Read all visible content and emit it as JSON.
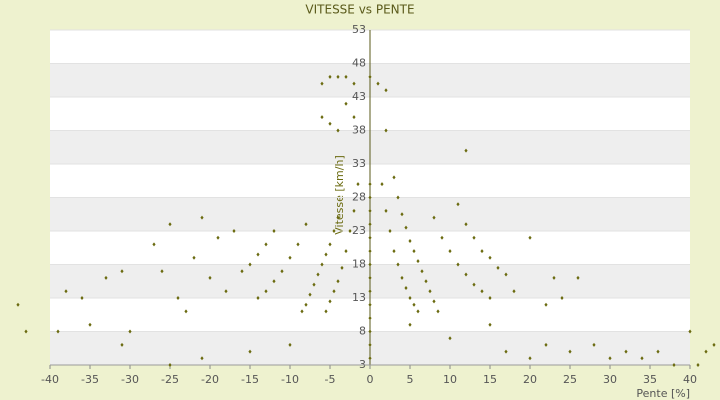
{
  "chart_data": {
    "type": "scatter",
    "title": "VITESSE vs PENTE",
    "x_label": "Pente [%]",
    "y_label": "Vitesse [km/h]",
    "xlim": [
      -40,
      40
    ],
    "xticks": [
      -40,
      -35,
      -30,
      -25,
      -20,
      -15,
      -10,
      -5,
      0,
      5,
      10,
      15,
      20,
      25,
      30,
      35,
      40
    ],
    "ylim": [
      3,
      53
    ],
    "yticks": [
      3,
      8,
      13,
      18,
      23,
      28,
      33,
      38,
      43,
      48,
      53
    ],
    "grid": true,
    "color": "#6b6b10",
    "x": [
      1.5,
      2,
      2.5,
      3,
      3.5,
      4,
      4.5,
      5,
      5.5,
      6,
      3,
      3.5,
      4,
      4.5,
      5,
      5.5,
      6,
      6.5,
      7,
      7.5,
      8,
      8.5,
      8,
      9,
      10,
      11,
      12,
      13,
      14,
      15,
      11,
      12,
      13,
      14,
      15,
      16,
      17,
      -1.5,
      -2,
      -2.5,
      -3,
      -3.5,
      -4,
      -4.5,
      -5,
      -5.5,
      -4,
      -4.5,
      -5,
      -5.5,
      -6,
      -6.5,
      -7,
      -7.5,
      -8,
      -8.5,
      -8,
      -9,
      -10,
      -11,
      -12,
      -13,
      -14,
      -12,
      -13,
      -14,
      -15,
      -16,
      -6,
      -5,
      -4,
      -3,
      -2,
      0,
      1,
      2,
      -6,
      -5,
      -4,
      -2,
      2,
      -3,
      0,
      0,
      0,
      0,
      0,
      0,
      0,
      0,
      0,
      0,
      0,
      0,
      0,
      0,
      -44,
      -43,
      -39,
      -38,
      -36,
      -35,
      -33,
      -31,
      -31,
      -30,
      -27,
      -26,
      -25,
      -25,
      -24,
      -23,
      -22,
      -21,
      -21,
      -20,
      -19,
      -18,
      -17,
      12,
      18,
      20,
      22,
      23,
      24,
      25,
      26,
      28,
      30,
      32,
      34,
      36,
      38,
      40,
      41,
      42,
      43,
      -10,
      -15,
      5,
      10,
      15,
      17,
      20,
      22
    ],
    "y": [
      30,
      26,
      23,
      20,
      18,
      16,
      14.5,
      13,
      12,
      11,
      31,
      28,
      25.5,
      23.5,
      21.5,
      20,
      18.5,
      17,
      15.5,
      14,
      12.5,
      11,
      25,
      22,
      20,
      18,
      16.5,
      15,
      14,
      13,
      27,
      24,
      22,
      20,
      19,
      17.5,
      16.5,
      30,
      26,
      23,
      20,
      17.5,
      15.5,
      14,
      12.5,
      11,
      25,
      23,
      21,
      19.5,
      18,
      16.5,
      15,
      13.5,
      12,
      11,
      24,
      21,
      19,
      17,
      15.5,
      14,
      13,
      23,
      21,
      19.5,
      18,
      17,
      45,
      46,
      46,
      46,
      45,
      46,
      45,
      44,
      40,
      39,
      38,
      40,
      38,
      42,
      4,
      6,
      8,
      10,
      12,
      14,
      16,
      18,
      20,
      22,
      24,
      26,
      28,
      30,
      12,
      8,
      8,
      14,
      13,
      9,
      16,
      17,
      6,
      8,
      21,
      17,
      24,
      3,
      13,
      11,
      19,
      25,
      4,
      16,
      22,
      14,
      23,
      35,
      14,
      22,
      12,
      16,
      13,
      5,
      16,
      6,
      4,
      5,
      4,
      5,
      3,
      8,
      3,
      5,
      6,
      6,
      5,
      9,
      7,
      9,
      5,
      4,
      6
    ]
  }
}
